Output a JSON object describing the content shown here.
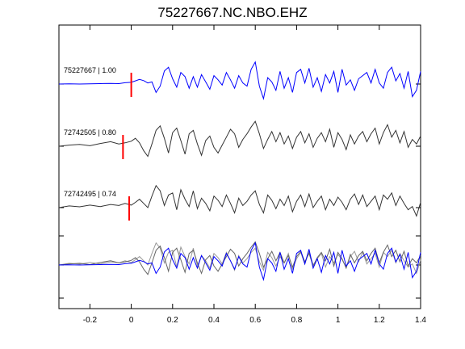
{
  "title": "75227667.NC.NBO.EHZ",
  "chart_data": {
    "type": "line",
    "title": "75227667.NC.NBO.EHZ",
    "xlabel": "",
    "ylabel": "",
    "xlim": [
      -0.35,
      1.4
    ],
    "xticks": [
      -0.2,
      0,
      0.2,
      0.4,
      0.6,
      0.8,
      1,
      1.2,
      1.4
    ],
    "xtick_labels": [
      "-0.2",
      "0",
      "0.2",
      "0.4",
      "0.6",
      "0.8",
      "1",
      "1.2",
      "1.4"
    ],
    "grid": false,
    "pick_time": 0,
    "series": [
      {
        "name": "75227667 | 1.00",
        "color": "#0000ff",
        "pick_x": 0.0,
        "x": [
          -0.35,
          -0.3,
          -0.25,
          -0.2,
          -0.15,
          -0.1,
          -0.06,
          -0.03,
          0.0,
          0.02,
          0.04,
          0.06,
          0.08,
          0.1,
          0.12,
          0.14,
          0.16,
          0.18,
          0.2,
          0.22,
          0.24,
          0.26,
          0.28,
          0.3,
          0.32,
          0.34,
          0.36,
          0.38,
          0.4,
          0.42,
          0.44,
          0.46,
          0.48,
          0.5,
          0.52,
          0.54,
          0.56,
          0.58,
          0.6,
          0.62,
          0.64,
          0.66,
          0.68,
          0.7,
          0.72,
          0.74,
          0.76,
          0.78,
          0.8,
          0.82,
          0.84,
          0.86,
          0.88,
          0.9,
          0.92,
          0.94,
          0.96,
          0.98,
          1.0,
          1.02,
          1.04,
          1.06,
          1.08,
          1.1,
          1.12,
          1.14,
          1.16,
          1.18,
          1.2,
          1.22,
          1.24,
          1.26,
          1.28,
          1.3,
          1.32,
          1.34,
          1.36,
          1.38,
          1.4
        ],
        "y": [
          0.0,
          0.01,
          0.0,
          0.01,
          0.02,
          0.03,
          0.02,
          0.06,
          0.08,
          0.15,
          0.22,
          0.16,
          0.05,
          0.1,
          -0.4,
          -0.1,
          0.62,
          0.8,
          0.25,
          -0.15,
          0.55,
          0.35,
          -0.2,
          0.35,
          -0.15,
          0.45,
          0.1,
          -0.25,
          0.4,
          0.2,
          -0.05,
          0.55,
          0.2,
          -0.2,
          0.4,
          0.05,
          -0.1,
          0.7,
          1.05,
          -0.1,
          -0.7,
          0.3,
          0.1,
          -0.3,
          0.6,
          -0.2,
          0.3,
          -0.4,
          0.55,
          0.7,
          0.05,
          0.75,
          -0.15,
          0.3,
          -0.35,
          0.45,
          0.05,
          0.6,
          -0.4,
          0.7,
          -0.05,
          0.2,
          -0.3,
          0.25,
          0.4,
          0.55,
          0.05,
          0.7,
          0.05,
          -0.2,
          0.55,
          0.8,
          0.15,
          0.5,
          -0.2,
          0.6,
          -0.6,
          -0.3,
          0.6
        ]
      },
      {
        "name": "72742505 | 0.80",
        "color": "#333333",
        "pick_x": -0.04,
        "x": [
          -0.35,
          -0.3,
          -0.25,
          -0.2,
          -0.15,
          -0.1,
          -0.06,
          -0.03,
          0.0,
          0.02,
          0.04,
          0.06,
          0.08,
          0.1,
          0.12,
          0.14,
          0.16,
          0.18,
          0.2,
          0.22,
          0.24,
          0.26,
          0.28,
          0.3,
          0.32,
          0.34,
          0.36,
          0.38,
          0.4,
          0.42,
          0.44,
          0.46,
          0.48,
          0.5,
          0.52,
          0.54,
          0.56,
          0.58,
          0.6,
          0.62,
          0.64,
          0.66,
          0.68,
          0.7,
          0.72,
          0.74,
          0.76,
          0.78,
          0.8,
          0.82,
          0.84,
          0.86,
          0.88,
          0.9,
          0.92,
          0.94,
          0.96,
          0.98,
          1.0,
          1.02,
          1.04,
          1.06,
          1.08,
          1.1,
          1.12,
          1.14,
          1.16,
          1.18,
          1.2,
          1.22,
          1.24,
          1.26,
          1.28,
          1.3,
          1.32,
          1.34,
          1.36,
          1.38,
          1.4
        ],
        "y": [
          0.0,
          0.05,
          0.08,
          0.02,
          0.12,
          0.2,
          0.1,
          0.15,
          0.22,
          0.35,
          0.15,
          -0.2,
          -0.45,
          0.1,
          0.7,
          0.9,
          0.35,
          -0.3,
          0.6,
          0.8,
          0.25,
          -0.35,
          0.55,
          0.7,
          0.1,
          -0.4,
          0.25,
          0.45,
          -0.05,
          -0.3,
          0.05,
          0.4,
          0.75,
          0.55,
          -0.05,
          0.3,
          0.55,
          0.85,
          1.1,
          0.55,
          -0.1,
          0.3,
          0.65,
          0.2,
          0.6,
          0.1,
          0.45,
          -0.1,
          0.4,
          0.65,
          0.15,
          0.55,
          -0.05,
          0.35,
          0.6,
          0.2,
          0.75,
          -0.05,
          0.6,
          0.3,
          -0.15,
          0.5,
          0.1,
          0.45,
          0.65,
          0.2,
          0.55,
          0.8,
          0.1,
          0.6,
          0.95,
          0.4,
          0.7,
          0.15,
          0.65,
          -0.05,
          0.3,
          0.1,
          0.45
        ]
      },
      {
        "name": "72742495 | 0.74",
        "color": "#333333",
        "pick_x": -0.01,
        "x": [
          -0.35,
          -0.3,
          -0.25,
          -0.2,
          -0.15,
          -0.1,
          -0.06,
          -0.03,
          0.0,
          0.02,
          0.04,
          0.06,
          0.08,
          0.1,
          0.12,
          0.14,
          0.16,
          0.18,
          0.2,
          0.22,
          0.24,
          0.26,
          0.28,
          0.3,
          0.32,
          0.34,
          0.36,
          0.38,
          0.4,
          0.42,
          0.44,
          0.46,
          0.48,
          0.5,
          0.52,
          0.54,
          0.56,
          0.58,
          0.6,
          0.62,
          0.64,
          0.66,
          0.68,
          0.7,
          0.72,
          0.74,
          0.76,
          0.78,
          0.8,
          0.82,
          0.84,
          0.86,
          0.88,
          0.9,
          0.92,
          0.94,
          0.96,
          0.98,
          1.0,
          1.02,
          1.04,
          1.06,
          1.08,
          1.1,
          1.12,
          1.14,
          1.16,
          1.18,
          1.2,
          1.22,
          1.24,
          1.26,
          1.28,
          1.3,
          1.32,
          1.34,
          1.36,
          1.38,
          1.4
        ],
        "y": [
          0.0,
          0.08,
          0.04,
          0.12,
          0.05,
          0.15,
          0.1,
          0.2,
          0.12,
          0.25,
          0.4,
          0.2,
          0.0,
          0.55,
          1.05,
          0.8,
          0.1,
          0.6,
          0.7,
          -0.1,
          0.85,
          0.4,
          0.05,
          0.8,
          -0.05,
          0.45,
          0.2,
          -0.15,
          0.55,
          0.35,
          0.05,
          0.6,
          0.2,
          -0.25,
          0.45,
          0.1,
          0.3,
          0.6,
          0.8,
          0.15,
          -0.25,
          0.6,
          0.35,
          -0.05,
          0.4,
          0.1,
          0.55,
          -0.2,
          0.3,
          0.6,
          0.05,
          0.65,
          0.0,
          0.3,
          0.55,
          -0.1,
          0.4,
          0.1,
          0.5,
          0.25,
          -0.1,
          0.4,
          0.65,
          0.15,
          0.6,
          0.05,
          0.3,
          0.55,
          -0.1,
          0.6,
          0.4,
          0.7,
          0.1,
          0.55,
          0.2,
          -0.1,
          0.05,
          -0.4,
          0.25
        ]
      }
    ],
    "labels": [
      "75227667 | 1.00",
      "72742505 | 0.80",
      "72742495 | 0.74"
    ]
  }
}
